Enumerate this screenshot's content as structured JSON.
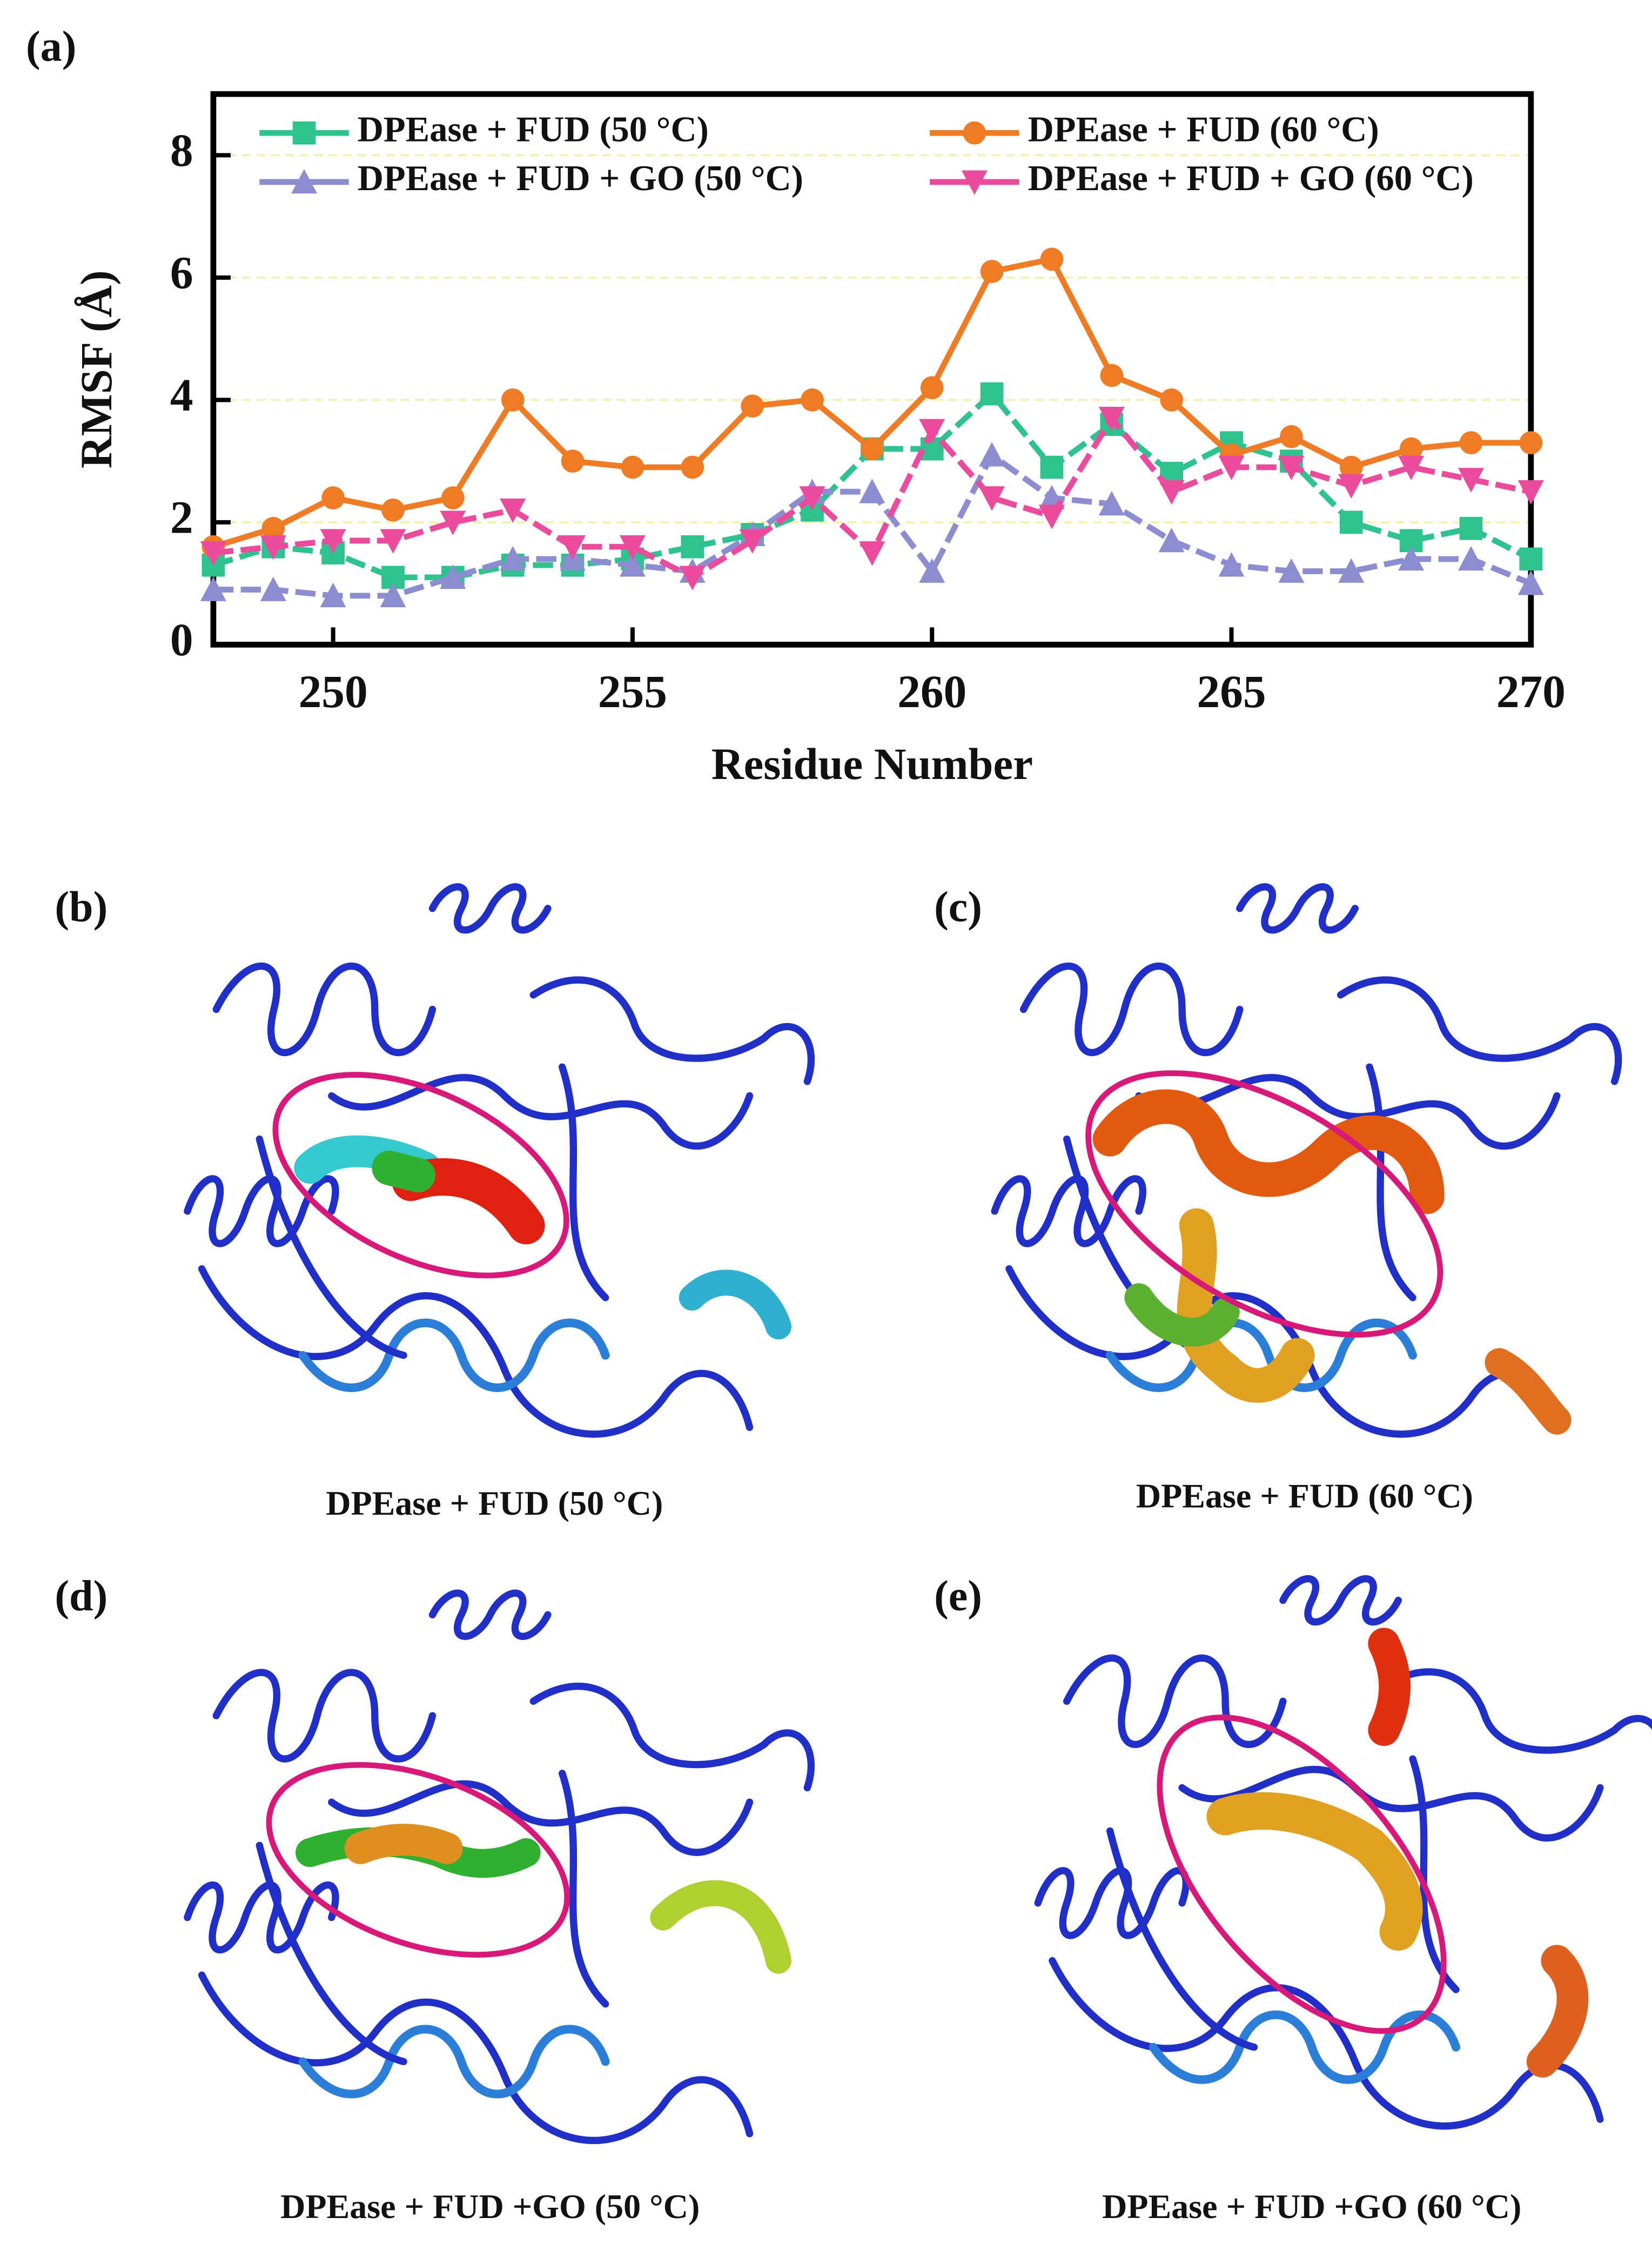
{
  "chart_data": {
    "type": "line",
    "panel_label": "(a)",
    "xlabel": "Residue Number",
    "ylabel": "RMSF (Å)",
    "x": [
      248,
      249,
      250,
      251,
      252,
      253,
      254,
      255,
      256,
      257,
      258,
      259,
      260,
      261,
      262,
      263,
      264,
      265,
      266,
      267,
      268,
      269,
      270
    ],
    "xlim": [
      248,
      270
    ],
    "xticks": [
      250,
      255,
      260,
      265,
      270
    ],
    "ylim": [
      0,
      9
    ],
    "yticks": [
      0,
      2,
      4,
      6,
      8
    ],
    "grid": true,
    "series": [
      {
        "name": "DPEase + FUD (50 °C)",
        "color": "#2ec28e",
        "marker": "square",
        "dashed": true,
        "values": [
          1.3,
          1.6,
          1.5,
          1.1,
          1.1,
          1.3,
          1.3,
          1.4,
          1.6,
          1.8,
          2.2,
          3.2,
          3.2,
          4.1,
          2.9,
          3.6,
          2.8,
          3.3,
          3.0,
          2.0,
          1.7,
          1.9,
          1.4
        ]
      },
      {
        "name": "DPEase + FUD (60 °C)",
        "color": "#ef7b25",
        "marker": "circle",
        "dashed": false,
        "values": [
          1.6,
          1.9,
          2.4,
          2.2,
          2.4,
          4.0,
          3.0,
          2.9,
          2.9,
          3.9,
          4.0,
          3.2,
          4.2,
          6.1,
          6.3,
          4.4,
          4.0,
          3.1,
          3.4,
          2.9,
          3.2,
          3.3,
          3.3
        ]
      },
      {
        "name": "DPEase + FUD + GO (50 °C)",
        "color": "#8c8cd0",
        "marker": "triangle-up",
        "dashed": true,
        "values": [
          0.9,
          0.9,
          0.8,
          0.8,
          1.1,
          1.4,
          1.4,
          1.3,
          1.2,
          1.8,
          2.5,
          2.5,
          1.2,
          3.1,
          2.4,
          2.3,
          1.7,
          1.3,
          1.2,
          1.2,
          1.4,
          1.4,
          1.0
        ]
      },
      {
        "name": "DPEase + FUD + GO (60 °C)",
        "color": "#ec4a9c",
        "marker": "triangle-down",
        "dashed": true,
        "values": [
          1.5,
          1.6,
          1.7,
          1.7,
          2.0,
          2.2,
          1.6,
          1.6,
          1.1,
          1.7,
          2.4,
          1.5,
          3.5,
          2.4,
          2.1,
          3.7,
          2.5,
          2.9,
          2.9,
          2.6,
          2.9,
          2.7,
          2.5
        ]
      }
    ]
  },
  "structures": [
    {
      "label": "(b)",
      "caption": "DPEase + FUD (50 °C)"
    },
    {
      "label": "(c)",
      "caption": "DPEase + FUD (60 °C)"
    },
    {
      "label": "(d)",
      "caption": "DPEase + FUD  +GO (50 °C)"
    },
    {
      "label": "(e)",
      "caption": "DPEase + FUD  +GO (60 °C)"
    }
  ]
}
